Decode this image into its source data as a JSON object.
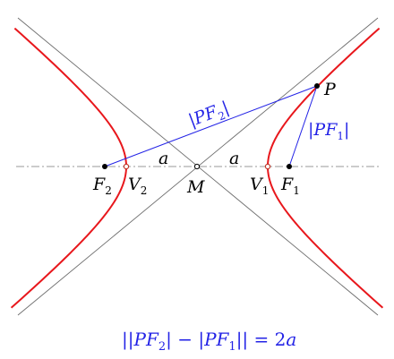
{
  "colors": {
    "curve": "#e8171c",
    "distance": "#2323e6",
    "asymptote": "#6e6e6e",
    "axis": "#9a9a9a",
    "point": "#000000",
    "vertex": "#c0392b"
  },
  "labels": {
    "P": "P",
    "F1": "F",
    "F1_sub": "1",
    "F2": "F",
    "F2_sub": "2",
    "V1": "V",
    "V1_sub": "1",
    "V2": "V",
    "V2_sub": "2",
    "M": "M",
    "a_left": "a",
    "a_right": "a",
    "PF2_open": "|",
    "PF2_main": "PF",
    "PF2_sub": "2",
    "PF2_close": "|",
    "PF1_open": "|",
    "PF1_main": "PF",
    "PF1_sub": "1",
    "PF1_close": "|"
  },
  "formula": {
    "p1": "||",
    "p2": "PF",
    "p3": "2",
    "p4": "| − |",
    "p5": "PF",
    "p6": "1",
    "p7": "|| = 2",
    "p8": "a"
  }
}
